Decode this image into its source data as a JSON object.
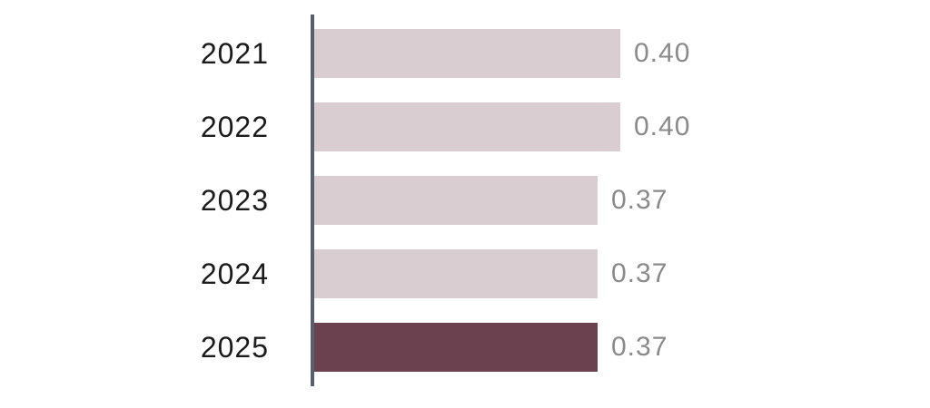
{
  "chart_data": {
    "type": "bar",
    "orientation": "horizontal",
    "title": "",
    "xlabel": "",
    "ylabel": "",
    "categories": [
      "2021",
      "2022",
      "2023",
      "2024",
      "2025"
    ],
    "values": [
      0.4,
      0.4,
      0.37,
      0.37,
      0.37
    ],
    "value_labels": [
      "0.40",
      "0.40",
      "0.37",
      "0.37",
      "0.37"
    ],
    "xlim": [
      0,
      0.4
    ],
    "grid": false,
    "legend": false,
    "value_label_position": "right-of-bar",
    "highlight_category": "2025",
    "colors": {
      "bar_default": "#d9cdd1",
      "bar_highlight": "#6b4150",
      "axis_line": "#57606e",
      "category_label": "#1b1b1b",
      "value_label": "#8a8a8a",
      "background": "#ffffff"
    }
  }
}
